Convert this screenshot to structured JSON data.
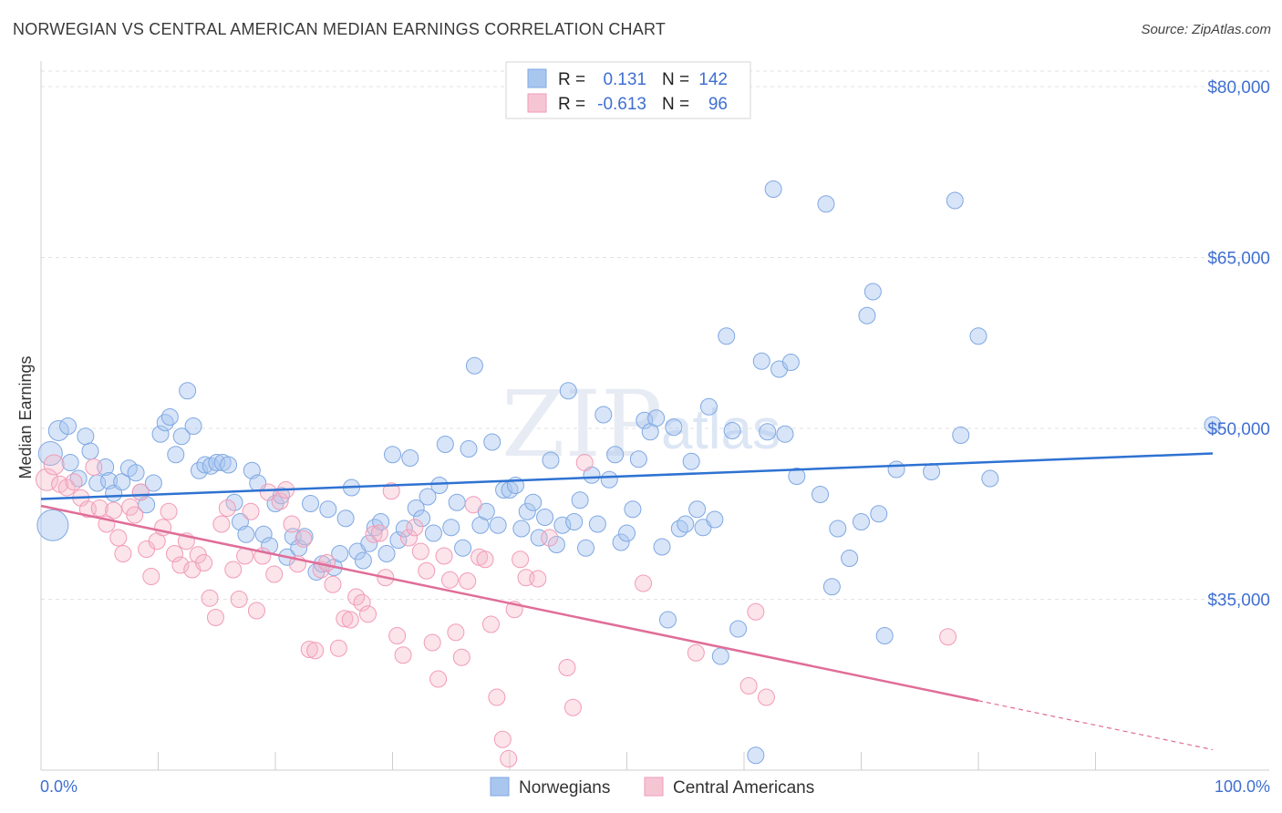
{
  "title": "NORWEGIAN VS CENTRAL AMERICAN MEDIAN EARNINGS CORRELATION CHART",
  "source": "Source: ZipAtlas.com",
  "watermark": {
    "zip": "ZIP",
    "atlas": "atlas"
  },
  "legend": {
    "r_label": "R =",
    "n_label": "N =",
    "rows": [
      {
        "r": "0.131",
        "n": "142",
        "color": "#a9c6ef"
      },
      {
        "r": "-0.613",
        "n": "96",
        "color": "#f5b7c9"
      }
    ]
  },
  "bottom_legend": [
    "Norwegians",
    "Central Americans"
  ],
  "chart_data": {
    "type": "scatter",
    "ylabel": "Median Earnings",
    "xlim": [
      0,
      100
    ],
    "ylim": [
      20000,
      82000
    ],
    "x_tick_labels": [
      "0.0%",
      "100.0%"
    ],
    "y_ticks": [
      35000,
      50000,
      65000,
      80000
    ],
    "y_tick_labels": [
      "$35,000",
      "$50,000",
      "$65,000",
      "$80,000"
    ],
    "grid": true,
    "series": [
      {
        "name": "Norwegians",
        "color": "#7fa8e3",
        "line_color": "#2e72d2",
        "trend": {
          "x": [
            0,
            100
          ],
          "y": [
            43800,
            47800
          ]
        },
        "points": [
          [
            0.8,
            47800
          ],
          [
            1.0,
            41500
          ],
          [
            1.5,
            49800
          ],
          [
            2.3,
            50200
          ],
          [
            2.5,
            47000
          ],
          [
            3.2,
            45600
          ],
          [
            3.8,
            49300
          ],
          [
            4.2,
            48000
          ],
          [
            4.8,
            45200
          ],
          [
            5.5,
            46600
          ],
          [
            5.8,
            45400
          ],
          [
            6.2,
            44300
          ],
          [
            6.9,
            45300
          ],
          [
            7.5,
            46500
          ],
          [
            8.1,
            46100
          ],
          [
            8.5,
            44400
          ],
          [
            9.0,
            43300
          ],
          [
            9.6,
            45200
          ],
          [
            10.2,
            49500
          ],
          [
            10.6,
            50500
          ],
          [
            11.0,
            51000
          ],
          [
            11.5,
            47700
          ],
          [
            12.0,
            49300
          ],
          [
            12.5,
            53300
          ],
          [
            13.0,
            50200
          ],
          [
            13.5,
            46300
          ],
          [
            14.0,
            46800
          ],
          [
            14.5,
            46700
          ],
          [
            15.0,
            47000
          ],
          [
            15.5,
            47000
          ],
          [
            16.0,
            46800
          ],
          [
            16.5,
            43500
          ],
          [
            17.0,
            41800
          ],
          [
            17.5,
            40700
          ],
          [
            18.0,
            46300
          ],
          [
            18.5,
            45200
          ],
          [
            19.0,
            40700
          ],
          [
            19.5,
            39700
          ],
          [
            20.0,
            43400
          ],
          [
            20.5,
            44100
          ],
          [
            21.0,
            38700
          ],
          [
            21.5,
            40500
          ],
          [
            22.0,
            39500
          ],
          [
            22.5,
            40500
          ],
          [
            23.0,
            43400
          ],
          [
            23.5,
            37400
          ],
          [
            24.0,
            38100
          ],
          [
            24.5,
            42900
          ],
          [
            25.0,
            37800
          ],
          [
            25.5,
            39000
          ],
          [
            26.0,
            42100
          ],
          [
            26.5,
            44800
          ],
          [
            27.0,
            39200
          ],
          [
            27.5,
            38400
          ],
          [
            28.0,
            39900
          ],
          [
            28.5,
            41300
          ],
          [
            29.0,
            41800
          ],
          [
            29.5,
            39000
          ],
          [
            30.0,
            47700
          ],
          [
            30.5,
            40200
          ],
          [
            31.0,
            41200
          ],
          [
            31.5,
            47400
          ],
          [
            32.0,
            43000
          ],
          [
            32.5,
            42100
          ],
          [
            33.0,
            44000
          ],
          [
            33.5,
            40800
          ],
          [
            34.0,
            45000
          ],
          [
            34.5,
            48600
          ],
          [
            35.0,
            41300
          ],
          [
            35.5,
            43500
          ],
          [
            36.0,
            39500
          ],
          [
            36.5,
            48200
          ],
          [
            37.0,
            55500
          ],
          [
            37.5,
            41500
          ],
          [
            38.0,
            42700
          ],
          [
            38.5,
            48800
          ],
          [
            39.0,
            41500
          ],
          [
            39.5,
            44600
          ],
          [
            40.0,
            44600
          ],
          [
            40.5,
            45000
          ],
          [
            41.0,
            41200
          ],
          [
            41.5,
            42700
          ],
          [
            42.0,
            43500
          ],
          [
            42.5,
            40400
          ],
          [
            43.0,
            42200
          ],
          [
            43.5,
            47200
          ],
          [
            44.0,
            39800
          ],
          [
            44.5,
            41500
          ],
          [
            45.0,
            53300
          ],
          [
            45.5,
            41800
          ],
          [
            46.0,
            43700
          ],
          [
            46.5,
            39500
          ],
          [
            47.0,
            45900
          ],
          [
            47.5,
            41600
          ],
          [
            48.0,
            51200
          ],
          [
            48.5,
            45500
          ],
          [
            49.0,
            47700
          ],
          [
            49.5,
            40000
          ],
          [
            50.0,
            40800
          ],
          [
            50.5,
            42900
          ],
          [
            51.0,
            47300
          ],
          [
            51.5,
            50700
          ],
          [
            52.0,
            49700
          ],
          [
            52.5,
            50900
          ],
          [
            53.0,
            39600
          ],
          [
            53.5,
            33200
          ],
          [
            54.0,
            50100
          ],
          [
            54.5,
            41200
          ],
          [
            55.0,
            41600
          ],
          [
            55.5,
            47100
          ],
          [
            56.0,
            42900
          ],
          [
            56.5,
            41300
          ],
          [
            57.0,
            51900
          ],
          [
            57.5,
            42000
          ],
          [
            58.0,
            30000
          ],
          [
            58.5,
            58100
          ],
          [
            59.0,
            49800
          ],
          [
            59.5,
            32400
          ],
          [
            61.0,
            21300
          ],
          [
            61.5,
            55900
          ],
          [
            62.0,
            49700
          ],
          [
            62.5,
            71000
          ],
          [
            63.0,
            55200
          ],
          [
            63.5,
            49500
          ],
          [
            64.0,
            55800
          ],
          [
            64.5,
            45800
          ],
          [
            66.5,
            44200
          ],
          [
            67.0,
            69700
          ],
          [
            67.5,
            36100
          ],
          [
            68.0,
            41200
          ],
          [
            69.0,
            38600
          ],
          [
            70.0,
            41800
          ],
          [
            70.5,
            59900
          ],
          [
            71.0,
            62000
          ],
          [
            71.5,
            42500
          ],
          [
            72.0,
            31800
          ],
          [
            73.0,
            46400
          ],
          [
            78.0,
            70000
          ],
          [
            78.5,
            49400
          ],
          [
            80.0,
            58100
          ],
          [
            81.0,
            45600
          ],
          [
            100.0,
            50300
          ],
          [
            76.0,
            46200
          ]
        ]
      },
      {
        "name": "Central Americans",
        "color": "#f29bb7",
        "line_color": "#e06d98",
        "trend": {
          "x": [
            0,
            80,
            100
          ],
          "y": [
            43200,
            26100,
            21800
          ]
        },
        "points": [
          [
            0.5,
            45500
          ],
          [
            1.1,
            46800
          ],
          [
            1.6,
            45100
          ],
          [
            2.2,
            44800
          ],
          [
            2.8,
            45300
          ],
          [
            3.4,
            43900
          ],
          [
            4.0,
            42900
          ],
          [
            4.5,
            46600
          ],
          [
            5.0,
            43000
          ],
          [
            5.6,
            41600
          ],
          [
            6.2,
            42800
          ],
          [
            6.6,
            40400
          ],
          [
            7.0,
            39000
          ],
          [
            7.6,
            43100
          ],
          [
            8.0,
            42400
          ],
          [
            8.5,
            44400
          ],
          [
            9.0,
            39400
          ],
          [
            9.4,
            37000
          ],
          [
            9.9,
            40100
          ],
          [
            10.4,
            41300
          ],
          [
            10.9,
            42700
          ],
          [
            11.4,
            39000
          ],
          [
            11.9,
            38000
          ],
          [
            12.4,
            40100
          ],
          [
            12.9,
            37600
          ],
          [
            13.4,
            38900
          ],
          [
            13.9,
            38200
          ],
          [
            14.4,
            35100
          ],
          [
            14.9,
            33400
          ],
          [
            15.4,
            41600
          ],
          [
            15.9,
            43000
          ],
          [
            16.4,
            37600
          ],
          [
            16.9,
            35000
          ],
          [
            17.4,
            38800
          ],
          [
            17.9,
            42700
          ],
          [
            18.4,
            34000
          ],
          [
            18.9,
            38800
          ],
          [
            19.4,
            44400
          ],
          [
            19.9,
            37200
          ],
          [
            20.4,
            43600
          ],
          [
            20.9,
            44600
          ],
          [
            21.4,
            41600
          ],
          [
            21.9,
            38100
          ],
          [
            22.4,
            40300
          ],
          [
            22.9,
            30600
          ],
          [
            23.4,
            30500
          ],
          [
            23.9,
            37600
          ],
          [
            24.4,
            38200
          ],
          [
            24.9,
            36300
          ],
          [
            25.4,
            30700
          ],
          [
            25.9,
            33300
          ],
          [
            26.4,
            33200
          ],
          [
            26.9,
            35200
          ],
          [
            27.4,
            34700
          ],
          [
            27.9,
            33700
          ],
          [
            28.4,
            40700
          ],
          [
            28.9,
            40800
          ],
          [
            29.4,
            36900
          ],
          [
            29.9,
            44500
          ],
          [
            30.4,
            31800
          ],
          [
            30.9,
            30100
          ],
          [
            31.4,
            40400
          ],
          [
            31.9,
            41300
          ],
          [
            32.4,
            39200
          ],
          [
            32.9,
            37500
          ],
          [
            33.4,
            31200
          ],
          [
            33.9,
            28000
          ],
          [
            34.4,
            38800
          ],
          [
            34.9,
            36700
          ],
          [
            35.4,
            32100
          ],
          [
            35.9,
            29900
          ],
          [
            36.4,
            36600
          ],
          [
            36.9,
            43300
          ],
          [
            37.4,
            38700
          ],
          [
            37.9,
            38500
          ],
          [
            38.4,
            32800
          ],
          [
            38.9,
            26400
          ],
          [
            39.4,
            22700
          ],
          [
            39.9,
            21000
          ],
          [
            40.4,
            34100
          ],
          [
            40.9,
            38500
          ],
          [
            41.4,
            36900
          ],
          [
            42.4,
            36800
          ],
          [
            43.4,
            40400
          ],
          [
            44.9,
            29000
          ],
          [
            45.4,
            25500
          ],
          [
            46.4,
            47000
          ],
          [
            51.4,
            36400
          ],
          [
            55.9,
            30300
          ],
          [
            60.4,
            27400
          ],
          [
            61.0,
            33900
          ],
          [
            61.9,
            26400
          ],
          [
            77.4,
            31700
          ]
        ]
      }
    ]
  }
}
